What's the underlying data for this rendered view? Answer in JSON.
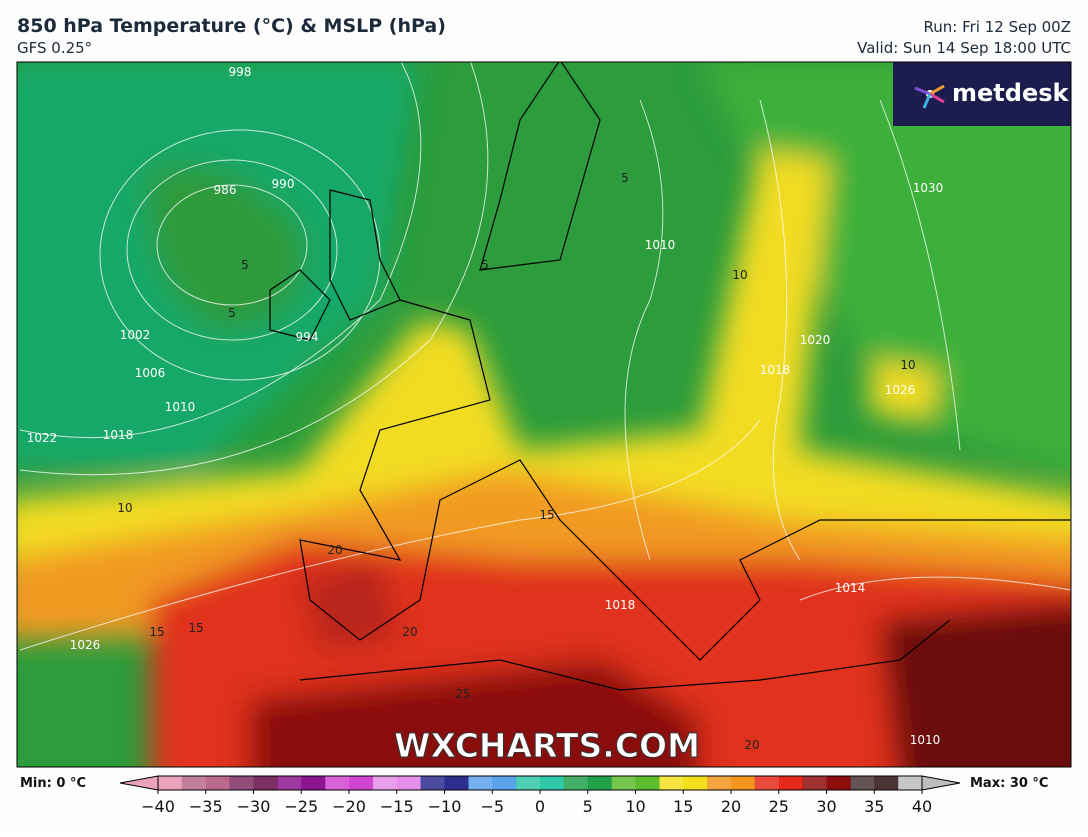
{
  "header": {
    "title": "850 hPa Temperature (°C) & MSLP (hPa)",
    "model": "GFS 0.25°",
    "run": "Run: Fri 12 Sep 00Z",
    "valid": "Valid: Sun 14 Sep 18:00 UTC"
  },
  "logo": "metdesk",
  "watermark": "WXCHARTS.COM",
  "map": {
    "isobar_labels": [
      "998",
      "986",
      "990",
      "994",
      "1002",
      "1006",
      "1010",
      "1018",
      "1022",
      "1026",
      "1010",
      "1020",
      "1018",
      "1030",
      "1026",
      "1014",
      "1018",
      "1010"
    ],
    "temperature_labels": [
      "5",
      "5",
      "5",
      "5",
      "10",
      "10",
      "10",
      "15",
      "20",
      "15",
      "15",
      "20",
      "25",
      "20"
    ]
  },
  "colorbar": {
    "min_label": "Min: 0 °C",
    "max_label": "Max: 30 °C",
    "lim": [
      -40,
      40
    ],
    "ticks": [
      {
        "value": -40,
        "label": "−40"
      },
      {
        "value": -35,
        "label": "−35"
      },
      {
        "value": -30,
        "label": "−30"
      },
      {
        "value": -25,
        "label": "−25"
      },
      {
        "value": -20,
        "label": "−20"
      },
      {
        "value": -15,
        "label": "−15"
      },
      {
        "value": -10,
        "label": "−10"
      },
      {
        "value": -5,
        "label": "−5"
      },
      0,
      5,
      10,
      15,
      20,
      25,
      30,
      35,
      40
    ],
    "colors": [
      "#e9a3bd",
      "#b96a8c",
      "#7c2f62",
      "#8d1690",
      "#cf45d2",
      "#e48ee8",
      "#2c2d8e",
      "#5aa2ea",
      "#2fc8a8",
      "#22a04a",
      "#5cbd2e",
      "#f2e01e",
      "#f3941f",
      "#e52a1c",
      "#8e0d0d",
      "#4a3434",
      "#bdbdbd"
    ]
  }
}
